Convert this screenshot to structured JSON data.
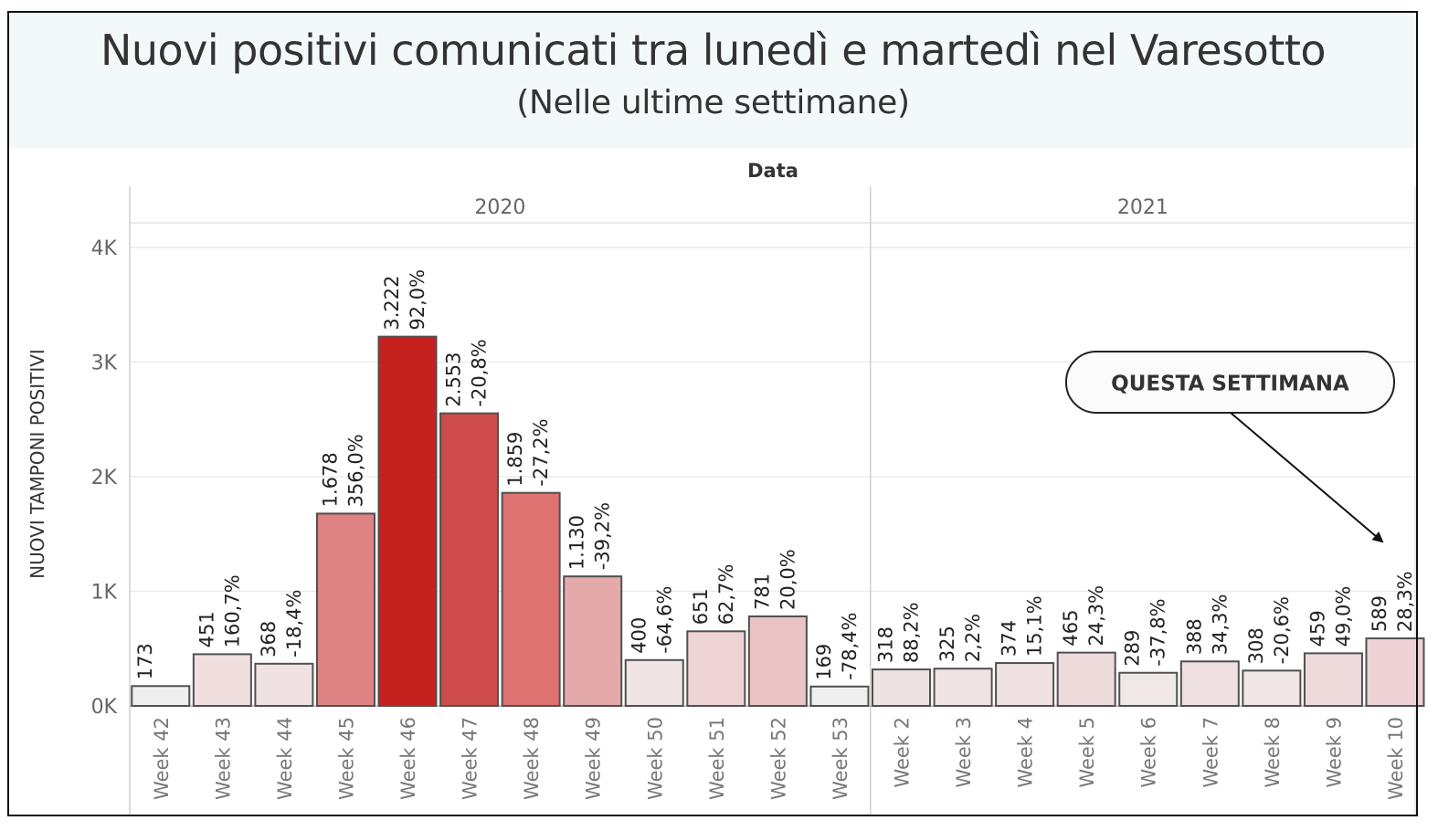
{
  "header": {
    "title": "Nuovi positivi comunicati tra lunedì e martedì nel Varesotto",
    "subtitle": "(Nelle ultime settimane)"
  },
  "chart_data": {
    "type": "bar",
    "title": "Nuovi positivi comunicati tra lunedì e martedì nel Varesotto",
    "subtitle": "(Nelle ultime settimane)",
    "column_header": "Data",
    "ylabel": "NUOVI TAMPONI POSITIVI",
    "ylim": [
      0,
      4000
    ],
    "yticks": [
      {
        "value": 0,
        "label": "0K"
      },
      {
        "value": 1000,
        "label": "1K"
      },
      {
        "value": 2000,
        "label": "2K"
      },
      {
        "value": 3000,
        "label": "3K"
      },
      {
        "value": 4000,
        "label": "4K"
      }
    ],
    "grid": true,
    "groups": [
      {
        "year": "2020",
        "categories": [
          "Week 42",
          "Week 43",
          "Week 44",
          "Week 45",
          "Week 46",
          "Week 47",
          "Week 48",
          "Week 49",
          "Week 50",
          "Week 51",
          "Week 52",
          "Week 53"
        ],
        "values": [
          173,
          451,
          368,
          1678,
          3222,
          2553,
          1859,
          1130,
          400,
          651,
          781,
          169
        ],
        "value_labels": [
          "173",
          "451",
          "368",
          "1.678",
          "3.222",
          "2.553",
          "1.859",
          "1.130",
          "400",
          "651",
          "781",
          "169"
        ],
        "pct_labels": [
          "",
          "160,7%",
          "-18,4%",
          "356,0%",
          "92,0%",
          "-20,8%",
          "-27,2%",
          "-39,2%",
          "-64,6%",
          "62,7%",
          "20,0%",
          "-78,4%"
        ],
        "colors": [
          "#efefef",
          "#f1dfe0",
          "#f0e2e3",
          "#de8383",
          "#c5221f",
          "#cd4b48",
          "#dd7271",
          "#e4a9a9",
          "#f1e4e5",
          "#efd4d5",
          "#ebc3c4",
          "#efefef"
        ]
      },
      {
        "year": "2021",
        "categories": [
          "Week 2",
          "Week 3",
          "Week 4",
          "Week 5",
          "Week 6",
          "Week 7",
          "Week 8",
          "Week 9",
          "Week 10"
        ],
        "values": [
          318,
          325,
          374,
          465,
          289,
          388,
          308,
          459,
          589
        ],
        "value_labels": [
          "318",
          "325",
          "374",
          "465",
          "289",
          "388",
          "308",
          "459",
          "589"
        ],
        "pct_labels": [
          "88,2%",
          "2,2%",
          "15,1%",
          "24,3%",
          "-37,8%",
          "34,3%",
          "-20,6%",
          "49,0%",
          "28,3%"
        ],
        "colors": [
          "#efe2e3",
          "#f0e3e4",
          "#f0e1e2",
          "#efdadb",
          "#f0e7e8",
          "#efe0e1",
          "#f0e6e7",
          "#efdadb",
          "#ecd2d4"
        ]
      }
    ],
    "annotation": {
      "text": "QUESTA SETTIMANA",
      "target": "Week 10"
    }
  }
}
